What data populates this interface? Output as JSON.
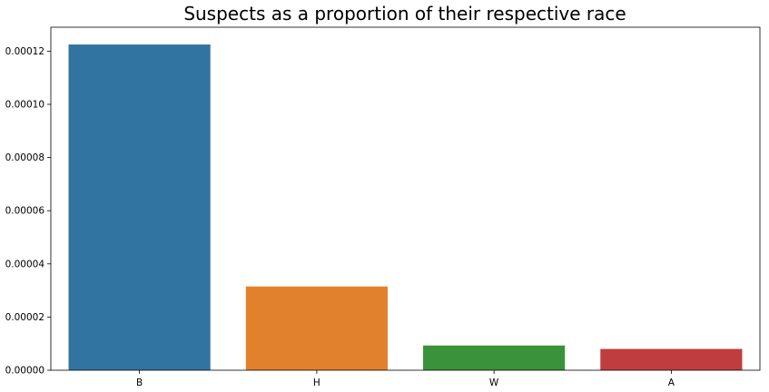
{
  "chart_data": {
    "type": "bar",
    "title": "Suspects as a proportion of their respective race",
    "xlabel": "",
    "ylabel": "",
    "categories": [
      "B",
      "H",
      "W",
      "A"
    ],
    "values": [
      0.0001225,
      3.15e-05,
      9.3e-06,
      8e-06
    ],
    "ylim": [
      0,
      0.000129
    ],
    "yticks": [
      0,
      2e-05,
      4e-05,
      6e-05,
      8e-05,
      0.0001,
      0.00012
    ],
    "ytick_labels": [
      "0.00000",
      "0.00002",
      "0.00004",
      "0.00006",
      "0.00008",
      "0.00010",
      "0.00012"
    ],
    "colors": [
      "#3274a1",
      "#e1812c",
      "#3a923a",
      "#c03d3e"
    ],
    "grid": false,
    "legend": "none"
  }
}
